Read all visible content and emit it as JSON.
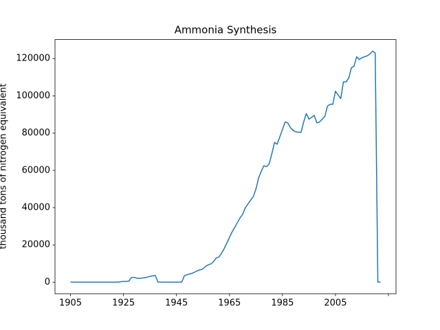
{
  "chart_data": {
    "type": "line",
    "title": "Ammonia Synthesis",
    "y_label": "thousand tons of nitrogen equivalent",
    "x": [
      1905,
      1906,
      1907,
      1908,
      1909,
      1910,
      1911,
      1912,
      1913,
      1914,
      1915,
      1916,
      1917,
      1918,
      1919,
      1920,
      1921,
      1922,
      1923,
      1924,
      1925,
      1926,
      1927,
      1928,
      1929,
      1930,
      1931,
      1932,
      1933,
      1934,
      1935,
      1936,
      1937,
      1938,
      1939,
      1940,
      1941,
      1942,
      1943,
      1944,
      1945,
      1946,
      1947,
      1948,
      1949,
      1950,
      1951,
      1952,
      1953,
      1954,
      1955,
      1956,
      1957,
      1958,
      1959,
      1960,
      1961,
      1962,
      1963,
      1964,
      1965,
      1966,
      1967,
      1968,
      1969,
      1970,
      1971,
      1972,
      1973,
      1974,
      1975,
      1976,
      1977,
      1978,
      1979,
      1980,
      1981,
      1982,
      1983,
      1984,
      1985,
      1986,
      1987,
      1988,
      1989,
      1990,
      1991,
      1992,
      1993,
      1994,
      1995,
      1996,
      1997,
      1998,
      1999,
      2000,
      2001,
      2002,
      2003,
      2004,
      2005,
      2006,
      2007,
      2008,
      2009,
      2010,
      2011,
      2012,
      2013,
      2014,
      2015,
      2016,
      2017,
      2018,
      2019,
      2020,
      2021,
      2022
    ],
    "series": [
      {
        "name": "Ammonia",
        "color": "#1f77b4",
        "values": [
          0,
          0,
          0,
          0,
          0,
          0,
          0,
          0,
          0,
          0,
          0,
          0,
          0,
          0,
          0,
          0,
          0,
          0,
          0,
          300,
          400,
          400,
          500,
          2500,
          2600,
          2100,
          2100,
          2200,
          2400,
          2700,
          3100,
          3400,
          3600,
          0,
          0,
          0,
          0,
          0,
          0,
          0,
          0,
          0,
          0,
          3500,
          4000,
          4400,
          4800,
          5500,
          6200,
          6600,
          7200,
          8500,
          9300,
          9800,
          11000,
          13000,
          13500,
          15500,
          18000,
          21000,
          24000,
          27000,
          29500,
          32000,
          34500,
          36500,
          40000,
          42000,
          44000,
          46000,
          50000,
          56000,
          59500,
          62500,
          62000,
          63500,
          69000,
          75000,
          74000,
          78000,
          82000,
          86000,
          85500,
          83000,
          81500,
          80700,
          80500,
          80400,
          86000,
          90500,
          87500,
          88500,
          89500,
          85500,
          86000,
          87500,
          89000,
          94500,
          95500,
          95500,
          102500,
          100500,
          98500,
          107500,
          107500,
          109500,
          115000,
          116000,
          121000,
          119500,
          120500,
          121000,
          121500,
          122500,
          124000,
          123000,
          0,
          0
        ]
      }
    ],
    "xlim": [
      1899.15,
      2027.85
    ],
    "xticks": [
      1905,
      1925,
      1945,
      1965,
      1985,
      2005,
      {
        "value": 2025,
        "label": null
      }
    ],
    "ylim": [
      -6200,
      130200
    ],
    "yticks": [
      0,
      20000,
      40000,
      60000,
      80000,
      100000,
      120000
    ]
  }
}
